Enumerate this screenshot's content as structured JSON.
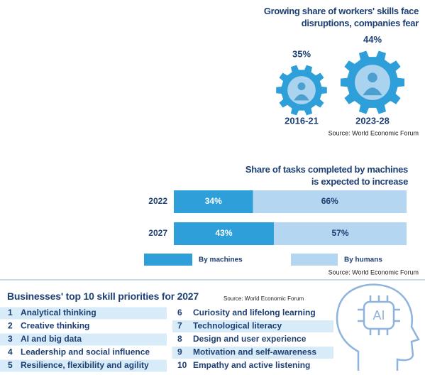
{
  "chart_data": [
    {
      "type": "pictorial",
      "title": "Growing share of workers' skills face disruptions, companies fear",
      "categories": [
        "2016-21",
        "2023-28"
      ],
      "values": [
        35,
        44
      ],
      "value_labels": [
        "35%",
        "44%"
      ],
      "color": "#2e9fd8",
      "source": "Source: World Economic Forum"
    },
    {
      "type": "stacked-bar",
      "title": "Share of tasks completed by machines is expected to increase",
      "categories": [
        "2022",
        "2027"
      ],
      "xlim": [
        0,
        100
      ],
      "series": [
        {
          "name": "By machines",
          "color": "#2e9fd8",
          "values": [
            34,
            43
          ],
          "value_labels": [
            "34%",
            "43%"
          ]
        },
        {
          "name": "By humans",
          "color": "#b4d6f1",
          "values": [
            66,
            57
          ],
          "value_labels": [
            "66%",
            "57%"
          ]
        }
      ],
      "source": "Source: World Economic Forum"
    }
  ],
  "skills": {
    "title": "Businesses' top 10 skill priorities for 2027",
    "source": "Source: World Economic Forum",
    "icon_text": "AI",
    "items": [
      {
        "number": 1,
        "label": "Analytical thinking"
      },
      {
        "number": 2,
        "label": "Creative thinking"
      },
      {
        "number": 3,
        "label": "AI and big data"
      },
      {
        "number": 4,
        "label": "Leadership and social influence"
      },
      {
        "number": 5,
        "label": "Resilience, flexibility and agility"
      },
      {
        "number": 6,
        "label": "Curiosity and lifelong learning"
      },
      {
        "number": 7,
        "label": "Technological literacy"
      },
      {
        "number": 8,
        "label": "Design and user experience"
      },
      {
        "number": 9,
        "label": "Motivation and self-awareness"
      },
      {
        "number": 10,
        "label": "Empathy and active listening"
      }
    ]
  }
}
